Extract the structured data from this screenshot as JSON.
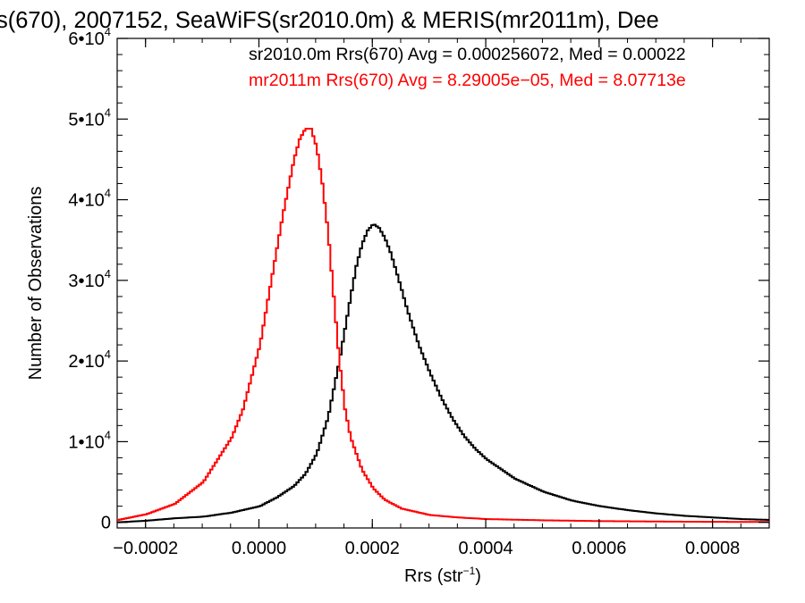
{
  "chart_data": {
    "type": "line",
    "title": "s(670), 2007152, SeaWiFS(sr2010.0m) & MERIS(mr2011m), Dee",
    "xlabel": "Rrs (str",
    "xlabel_sup": "−1",
    "xlabel_close": ")",
    "ylabel": "Number of Observations",
    "xlim": [
      -0.00025,
      0.0009
    ],
    "ylim": [
      -700,
      60000
    ],
    "x_ticks": [
      {
        "value": -0.0002,
        "label": "−0.0002"
      },
      {
        "value": 0.0,
        "label": "0.0000"
      },
      {
        "value": 0.0002,
        "label": "0.0002"
      },
      {
        "value": 0.0004,
        "label": "0.0004"
      },
      {
        "value": 0.0006,
        "label": "0.0006"
      },
      {
        "value": 0.0008,
        "label": "0.0008"
      }
    ],
    "y_ticks": [
      {
        "value": 0,
        "mant": "0",
        "exp": ""
      },
      {
        "value": 10000,
        "mant": "1•10",
        "exp": "4"
      },
      {
        "value": 20000,
        "mant": "2•10",
        "exp": "4"
      },
      {
        "value": 30000,
        "mant": "3•10",
        "exp": "4"
      },
      {
        "value": 40000,
        "mant": "4•10",
        "exp": "4"
      },
      {
        "value": 50000,
        "mant": "5•10",
        "exp": "4"
      },
      {
        "value": 60000,
        "mant": "6•10",
        "exp": "4"
      }
    ],
    "grid": false,
    "legend_position": "top-right",
    "series": [
      {
        "name": "sr2010.0m Rrs(670) Avg = 0.000256072, Med = 0.00022",
        "color": "#000000",
        "x": [
          -0.00025,
          -0.0002,
          -0.00015,
          -0.0001,
          -5e-05,
          0.0,
          3e-05,
          6e-05,
          8e-05,
          0.0001,
          0.00012,
          0.00014,
          0.00016,
          0.00017,
          0.00018,
          0.00019,
          0.0002,
          0.00021,
          0.00022,
          0.00023,
          0.00024,
          0.00025,
          0.00026,
          0.00028,
          0.0003,
          0.00032,
          0.00034,
          0.00036,
          0.00038,
          0.0004,
          0.00045,
          0.0005,
          0.00055,
          0.0006,
          0.00065,
          0.0007,
          0.00075,
          0.0008,
          0.00085,
          0.0009
        ],
        "y": [
          0,
          200,
          500,
          700,
          1200,
          2000,
          3100,
          4500,
          6000,
          8500,
          13000,
          20000,
          28000,
          31800,
          34500,
          36200,
          37000,
          36500,
          35300,
          33500,
          31200,
          28800,
          26300,
          22000,
          18500,
          15400,
          12800,
          10700,
          9100,
          7800,
          5400,
          3800,
          2700,
          2000,
          1500,
          1100,
          800,
          600,
          400,
          300
        ]
      },
      {
        "name": "mr2011m Rrs(670) Avg = 8.29005e−05, Med = 8.07713e",
        "color": "#ff0000",
        "x": [
          -0.00025,
          -0.0002,
          -0.00015,
          -0.0001,
          -5e-05,
          -3e-05,
          0.0,
          2e-05,
          4e-05,
          6e-05,
          7e-05,
          8e-05,
          9e-05,
          0.0001,
          0.00011,
          0.00012,
          0.00013,
          0.00014,
          0.00015,
          0.00016,
          0.00018,
          0.0002,
          0.00022,
          0.00025,
          0.0003,
          0.00035,
          0.0004,
          0.0005,
          0.0006,
          0.0007,
          0.0008,
          0.0009
        ],
        "y": [
          300,
          1000,
          2300,
          5000,
          10500,
          14000,
          22000,
          30000,
          38000,
          45000,
          47500,
          48800,
          48800,
          46500,
          42000,
          36000,
          28000,
          20000,
          14000,
          10500,
          6500,
          4200,
          2800,
          1700,
          900,
          600,
          400,
          250,
          150,
          100,
          60,
          40
        ]
      }
    ]
  }
}
